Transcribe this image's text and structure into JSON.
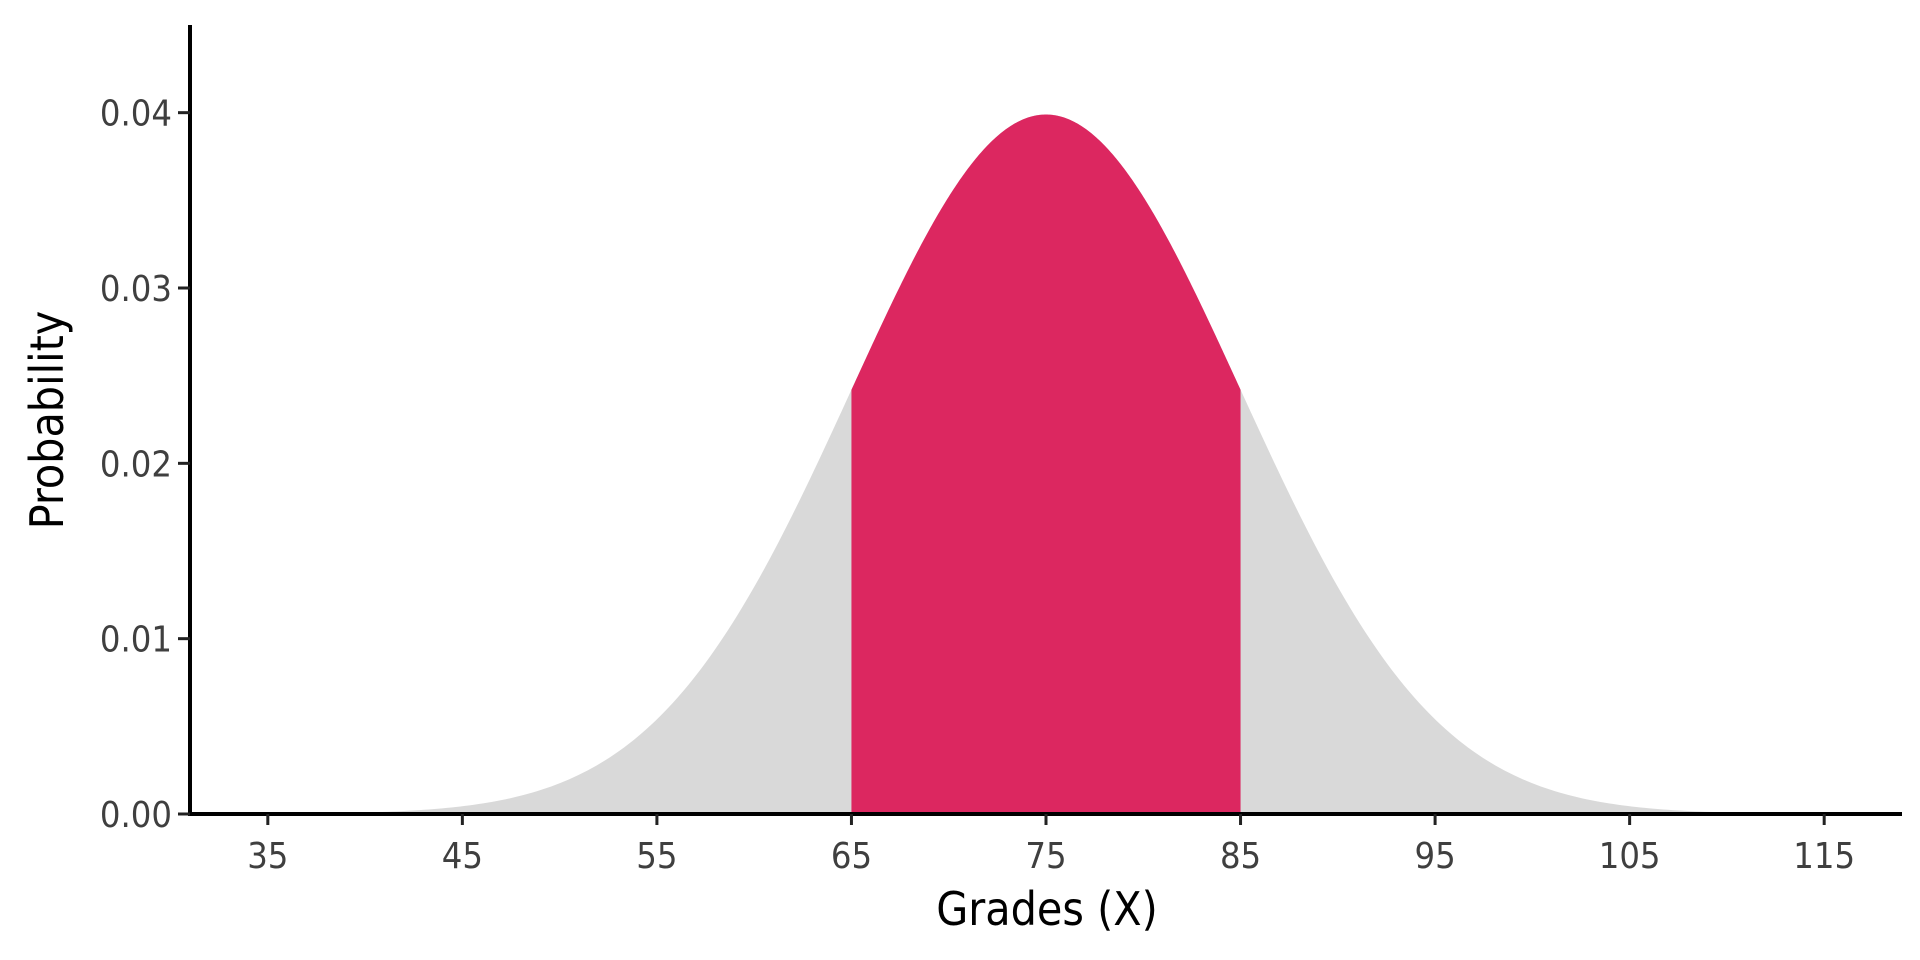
{
  "chart_data": {
    "type": "area",
    "title": "",
    "xlabel": "Grades (X)",
    "ylabel": "Probability",
    "distribution": {
      "family": "normal",
      "mean": 75,
      "sd": 10
    },
    "xlim": [
      31,
      119
    ],
    "ylim": [
      0,
      0.045
    ],
    "x_ticks": [
      35,
      45,
      55,
      65,
      75,
      85,
      95,
      105,
      115
    ],
    "x_tick_labels": [
      "35",
      "45",
      "55",
      "65",
      "75",
      "85",
      "95",
      "105",
      "115"
    ],
    "y_ticks": [
      0,
      0.01,
      0.02,
      0.03,
      0.04
    ],
    "y_tick_labels": [
      "0.00",
      "0.01",
      "0.02",
      "0.03",
      "0.04"
    ],
    "series": [
      {
        "x_range": [
          40,
          110
        ],
        "fill": "#d9d9d9"
      },
      {
        "x_range": [
          65,
          85
        ],
        "fill": "#dc2760"
      }
    ],
    "grid": false,
    "legend": "none"
  }
}
